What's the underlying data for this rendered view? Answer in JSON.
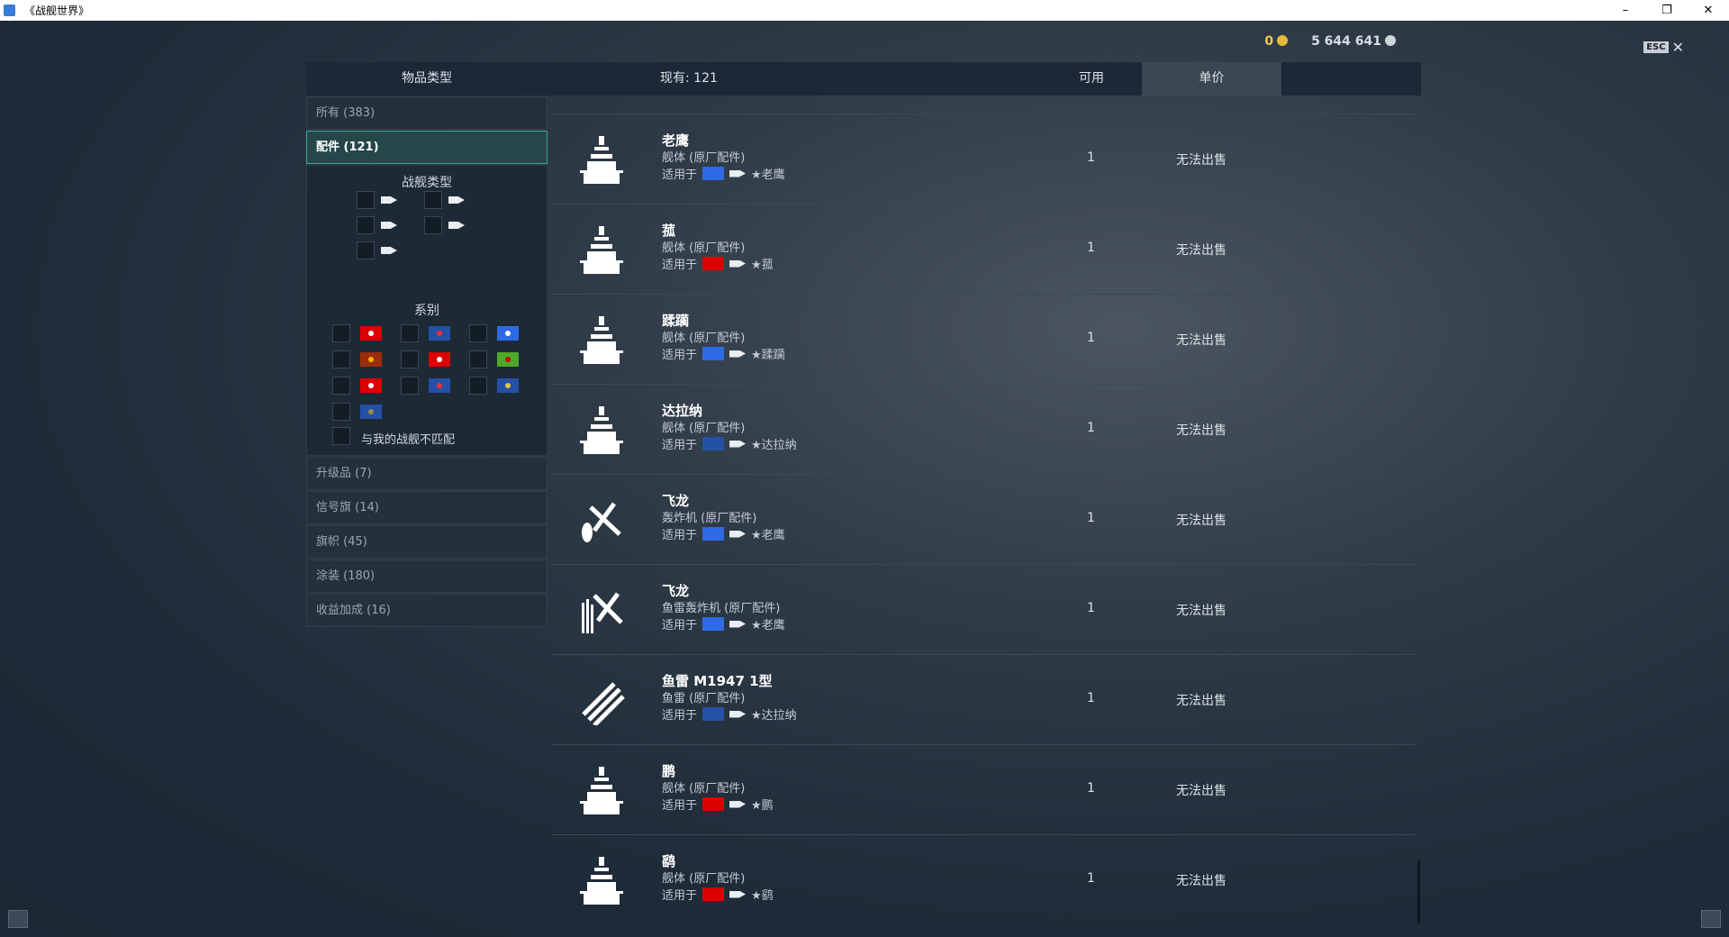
{
  "window": {
    "title": "《战舰世界》",
    "minimize": "–",
    "restore": "❐",
    "close": "✕"
  },
  "currency": {
    "gold": "0",
    "silver": "5 644 641",
    "gold_color": "#f2c94c",
    "silver_color": "#d8dde2"
  },
  "esc": {
    "key": "ESC",
    "close": "✕"
  },
  "header": {
    "item_type": "物品类型",
    "owned": "现有: 121",
    "available": "可用",
    "unit_price": "单价"
  },
  "sidebar": {
    "top": [
      {
        "label": "所有 (383)"
      },
      {
        "label": "配件 (121)",
        "active": true
      }
    ],
    "filter": {
      "ship_type_title": "战舰类型",
      "nation_title": "系别",
      "mismatch": "与我的战舰不匹配",
      "flags": [
        [
          "#d00",
          "#fff"
        ],
        [
          "#2450a6",
          "#e33"
        ],
        [
          "#2e6ae6",
          "#fff"
        ],
        [
          "#9b2d0c",
          "#f7b500"
        ],
        [
          "#d00",
          "#fff"
        ],
        [
          "#4ea829",
          "#c00"
        ],
        [
          "#d00",
          "#fff"
        ],
        [
          "#2450a6",
          "#e33"
        ],
        [
          "#2450a6",
          "#e5c13a"
        ],
        [
          "#2450a6",
          "#9a8a4a"
        ]
      ]
    },
    "bottom": [
      {
        "label": "升级品 (7)"
      },
      {
        "label": "信号旗 (14)"
      },
      {
        "label": "旗帜 (45)"
      },
      {
        "label": "涂装 (180)"
      },
      {
        "label": "收益加成 (16)"
      }
    ]
  },
  "items": [
    {
      "name": "老鹰",
      "type": "舰体 (原厂配件)",
      "applies": "适用于",
      "ship": "★老鹰",
      "flag": "#2e6ae6",
      "icon": "ship-icon",
      "available": "1",
      "price": "无法出售"
    },
    {
      "name": "菰",
      "type": "舰体 (原厂配件)",
      "applies": "适用于",
      "ship": "★菰",
      "flag": "#d00",
      "icon": "ship-icon",
      "available": "1",
      "price": "无法出售"
    },
    {
      "name": "蹂躏",
      "type": "舰体 (原厂配件)",
      "applies": "适用于",
      "ship": "★蹂躏",
      "flag": "#2e6ae6",
      "icon": "ship-icon",
      "available": "1",
      "price": "无法出售"
    },
    {
      "name": "达拉纳",
      "type": "舰体 (原厂配件)",
      "applies": "适用于",
      "ship": "★达拉纳",
      "flag": "#2450a6",
      "icon": "ship-icon",
      "available": "1",
      "price": "无法出售"
    },
    {
      "name": "飞龙",
      "type": "轰炸机 (原厂配件)",
      "applies": "适用于",
      "ship": "★老鹰",
      "flag": "#2e6ae6",
      "icon": "bomber-icon",
      "available": "1",
      "price": "无法出售"
    },
    {
      "name": "飞龙",
      "type": "鱼雷轰炸机 (原厂配件)",
      "applies": "适用于",
      "ship": "★老鹰",
      "flag": "#2e6ae6",
      "icon": "torpedo-bomber-icon",
      "available": "1",
      "price": "无法出售"
    },
    {
      "name": "鱼雷 M1947 1型",
      "type": "鱼雷 (原厂配件)",
      "applies": "适用于",
      "ship": "★达拉纳",
      "flag": "#2450a6",
      "icon": "torpedo-icon",
      "available": "1",
      "price": "无法出售"
    },
    {
      "name": "鹏",
      "type": "舰体 (原厂配件)",
      "applies": "适用于",
      "ship": "★鹏",
      "flag": "#d00",
      "icon": "ship-icon",
      "available": "1",
      "price": "无法出售"
    },
    {
      "name": "鹞",
      "type": "舰体 (原厂配件)",
      "applies": "适用于",
      "ship": "★鹞",
      "flag": "#d00",
      "icon": "ship-icon",
      "available": "1",
      "price": "无法出售"
    }
  ]
}
